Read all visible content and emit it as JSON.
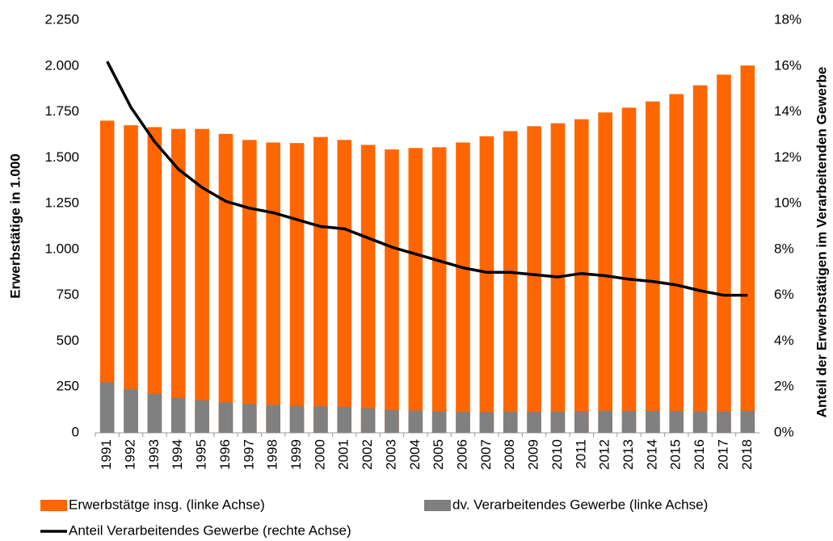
{
  "chart_data": {
    "type": "bar",
    "categories": [
      "1991",
      "1992",
      "1993",
      "1994",
      "1995",
      "1996",
      "1997",
      "1998",
      "1999",
      "2000",
      "2001",
      "2002",
      "2003",
      "2004",
      "2005",
      "2006",
      "2007",
      "2008",
      "2009",
      "2010",
      "2011",
      "2012",
      "2013",
      "2014",
      "2015",
      "2016",
      "2017",
      "2018"
    ],
    "series": [
      {
        "name": "Erwerbstätge insg. (linke Achse)",
        "color": "#ff6600",
        "values": [
          1702,
          1677,
          1667,
          1657,
          1657,
          1630,
          1597,
          1583,
          1580,
          1613,
          1597,
          1570,
          1545,
          1553,
          1557,
          1583,
          1617,
          1645,
          1672,
          1688,
          1710,
          1747,
          1773,
          1807,
          1847,
          1895,
          1953,
          2003
        ]
      },
      {
        "name": "dv. Verarbeitendes Gewerbe (linke Achse)",
        "color": "#808080",
        "values": [
          276,
          238,
          212,
          191,
          177,
          165,
          157,
          152,
          147,
          145,
          142,
          133,
          125,
          121,
          117,
          114,
          113,
          115,
          115,
          115,
          119,
          120,
          119,
          119,
          119,
          117,
          117,
          120
        ]
      },
      {
        "name": "Anteil Verarbeitendes Gewerbe (rechte Achse)",
        "color": "#000000",
        "axis": "y2",
        "values": [
          16.2,
          14.2,
          12.7,
          11.5,
          10.7,
          10.1,
          9.8,
          9.6,
          9.3,
          9.0,
          8.9,
          8.5,
          8.1,
          7.8,
          7.5,
          7.2,
          7.0,
          7.0,
          6.9,
          6.8,
          6.95,
          6.85,
          6.7,
          6.6,
          6.45,
          6.2,
          6.0,
          6.0
        ]
      }
    ],
    "ylabel": "Erwerbstätige in 1.000",
    "y2label": "Anteil der Erwerbstätigen im Verarbeitenden Gewerbe",
    "ylim": [
      0,
      2250
    ],
    "yticks": [
      0,
      250,
      500,
      750,
      {
        "value": 1000,
        "label": "1.000"
      },
      {
        "value": 1250,
        "label": "1.250"
      },
      {
        "value": 1500,
        "label": "1.500"
      },
      {
        "value": 1750,
        "label": "1.750"
      },
      {
        "value": 2000,
        "label": "2.000"
      },
      {
        "value": 2250,
        "label": "2.250"
      }
    ],
    "y2lim": [
      0,
      18
    ],
    "y2ticks": [
      {
        "value": 0,
        "label": "0%"
      },
      {
        "value": 2,
        "label": "2%"
      },
      {
        "value": 4,
        "label": "4%"
      },
      {
        "value": 6,
        "label": "6%"
      },
      {
        "value": 8,
        "label": "8%"
      },
      {
        "value": 10,
        "label": "10%"
      },
      {
        "value": 12,
        "label": "12%"
      },
      {
        "value": 14,
        "label": "14%"
      },
      {
        "value": 16,
        "label": "16%"
      },
      {
        "value": 18,
        "label": "18%"
      }
    ],
    "grid": false
  }
}
